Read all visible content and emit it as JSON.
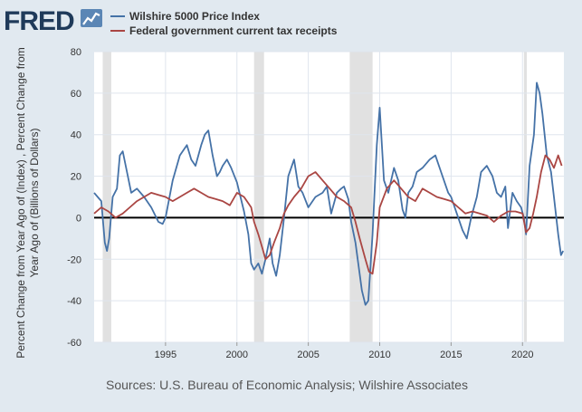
{
  "brand": {
    "logo_text": "FRED",
    "colors": {
      "logo": "#1f3a5a",
      "logo_accent": "#4a7bb0"
    }
  },
  "sources": "Sources: U.S. Bureau of Economic Analysis; Wilshire Associates",
  "chart_data": {
    "type": "line",
    "title": "",
    "xlabel": "",
    "ylabel": "Percent Change from Year Ago of (Index) , Percent Change from Year Ago of (Billions of Dollars)",
    "ylabel_lines": [
      "Percent Change from Year Ago of (Index) , Percent Change from",
      "Year Ago of (Billions of Dollars)"
    ],
    "xlim": [
      1990.0,
      2022.9
    ],
    "ylim": [
      -60,
      80
    ],
    "x_ticks": [
      1995,
      2000,
      2005,
      2010,
      2015,
      2020
    ],
    "y_ticks": [
      -60,
      -40,
      -20,
      0,
      20,
      40,
      60,
      80
    ],
    "grid": true,
    "zero_line": true,
    "legend_position": "top-left",
    "colors": {
      "plot_bg": "#ffffff",
      "grid": "#dfe5ee",
      "recession": "#e1e1e1",
      "zero_line": "#000000",
      "text": "#333333",
      "sources_text": "#555555"
    },
    "recessions": [
      [
        1990.6,
        1991.2
      ],
      [
        2001.2,
        2001.9
      ],
      [
        2007.9,
        2009.5
      ],
      [
        2020.1,
        2020.3
      ]
    ],
    "series": [
      {
        "name": "Wilshire 5000 Price Index",
        "color": "#4572a7",
        "x": [
          1990.0,
          1990.25,
          1990.5,
          1990.75,
          1990.9,
          1991.05,
          1991.3,
          1991.6,
          1991.8,
          1992.0,
          1992.3,
          1992.6,
          1993.0,
          1993.5,
          1994.0,
          1994.5,
          1994.8,
          1995.0,
          1995.5,
          1996.0,
          1996.5,
          1996.8,
          1997.1,
          1997.5,
          1997.75,
          1998.0,
          1998.3,
          1998.6,
          1998.8,
          1999.0,
          1999.3,
          1999.6,
          2000.0,
          2000.25,
          2000.5,
          2000.8,
          2001.0,
          2001.2,
          2001.5,
          2001.75,
          2002.0,
          2002.3,
          2002.5,
          2002.75,
          2003.0,
          2003.3,
          2003.6,
          2004.0,
          2004.3,
          2004.6,
          2005.0,
          2005.5,
          2006.0,
          2006.3,
          2006.6,
          2007.0,
          2007.3,
          2007.5,
          2007.8,
          2008.0,
          2008.3,
          2008.5,
          2008.75,
          2009.0,
          2009.2,
          2009.5,
          2009.8,
          2010.0,
          2010.3,
          2010.6,
          2011.0,
          2011.3,
          2011.6,
          2011.8,
          2012.0,
          2012.3,
          2012.6,
          2013.0,
          2013.5,
          2013.9,
          2014.3,
          2014.8,
          2015.0,
          2015.4,
          2015.8,
          2016.1,
          2016.4,
          2016.8,
          2017.1,
          2017.5,
          2017.9,
          2018.2,
          2018.5,
          2018.8,
          2018.98,
          2019.3,
          2019.6,
          2019.9,
          2020.1,
          2020.25,
          2020.5,
          2020.8,
          2021.0,
          2021.2,
          2021.4,
          2021.7,
          2022.0,
          2022.2,
          2022.5,
          2022.7,
          2022.85
        ],
        "values": [
          12,
          10,
          8,
          -12,
          -16,
          -10,
          10,
          14,
          30,
          32,
          22,
          12,
          14,
          10,
          5,
          -2,
          -3,
          0,
          18,
          30,
          35,
          28,
          25,
          35,
          40,
          42,
          30,
          20,
          22,
          25,
          28,
          24,
          17,
          10,
          3,
          -8,
          -22,
          -25,
          -22,
          -27,
          -20,
          -10,
          -22,
          -28,
          -18,
          0,
          20,
          28,
          15,
          12,
          5,
          10,
          12,
          15,
          2,
          12,
          14,
          15,
          9,
          -2,
          -12,
          -22,
          -35,
          -42,
          -40,
          -8,
          35,
          53,
          18,
          12,
          24,
          18,
          4,
          0,
          12,
          15,
          22,
          24,
          28,
          30,
          22,
          12,
          10,
          2,
          -6,
          -10,
          0,
          10,
          22,
          25,
          20,
          12,
          10,
          15,
          -5,
          12,
          8,
          5,
          0,
          -8,
          25,
          40,
          65,
          60,
          50,
          30,
          22,
          10,
          -8,
          -18,
          -16
        ]
      },
      {
        "name": "Federal government current tax receipts",
        "color": "#aa4643",
        "x": [
          1990.0,
          1990.5,
          1991.0,
          1991.5,
          1992.0,
          1992.5,
          1993.0,
          1993.5,
          1994.0,
          1994.5,
          1995.0,
          1995.5,
          1996.0,
          1996.5,
          1997.0,
          1997.5,
          1998.0,
          1998.5,
          1999.0,
          1999.5,
          2000.0,
          2000.5,
          2001.0,
          2001.2,
          2001.5,
          2001.8,
          2002.0,
          2002.3,
          2002.6,
          2003.0,
          2003.3,
          2003.6,
          2004.0,
          2004.5,
          2005.0,
          2005.5,
          2006.0,
          2006.5,
          2007.0,
          2007.5,
          2008.0,
          2008.3,
          2008.6,
          2009.0,
          2009.25,
          2009.5,
          2009.8,
          2010.0,
          2010.5,
          2011.0,
          2011.5,
          2012.0,
          2012.5,
          2013.0,
          2013.5,
          2014.0,
          2014.5,
          2015.0,
          2015.5,
          2016.0,
          2016.5,
          2017.0,
          2017.5,
          2018.0,
          2018.5,
          2019.0,
          2019.5,
          2020.0,
          2020.25,
          2020.5,
          2020.75,
          2021.0,
          2021.3,
          2021.6,
          2021.9,
          2022.2,
          2022.5,
          2022.75
        ],
        "values": [
          2,
          5,
          3,
          0,
          2,
          5,
          8,
          10,
          12,
          11,
          10,
          8,
          10,
          12,
          14,
          12,
          10,
          9,
          8,
          6,
          12,
          10,
          5,
          -2,
          -8,
          -15,
          -20,
          -18,
          -12,
          -5,
          2,
          6,
          10,
          14,
          20,
          22,
          18,
          14,
          10,
          8,
          5,
          -2,
          -10,
          -20,
          -26,
          -27,
          -12,
          5,
          14,
          18,
          14,
          10,
          8,
          14,
          12,
          10,
          9,
          8,
          5,
          2,
          3,
          2,
          1,
          -2,
          1,
          3,
          3,
          2,
          -7,
          -5,
          2,
          10,
          22,
          30,
          28,
          24,
          30,
          25
        ]
      }
    ]
  }
}
